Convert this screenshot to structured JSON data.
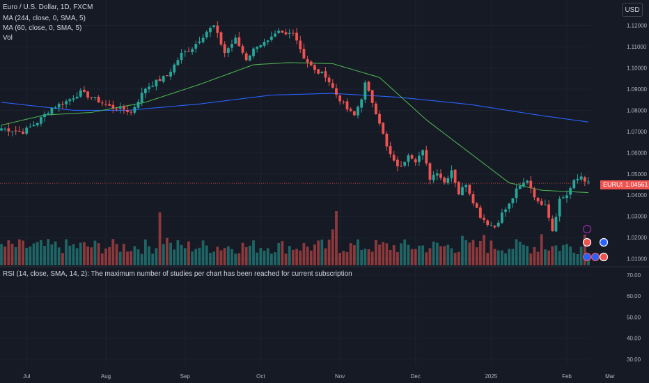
{
  "legend": {
    "symbol_line": "Euro / U.S. Dollar, 1D, FXCM",
    "ma244_line": "MA (244, close, 0, SMA, 5)",
    "ma60_line": "MA (60, close, 0, SMA, 5)",
    "vol_line": "Vol"
  },
  "currency_button": "USD",
  "rsi_pane": {
    "message": "RSI (14, close, SMA, 14, 2): The maximum number of studies per chart has been reached for current subscription"
  },
  "last_price": {
    "symbol": "EURUSD",
    "value": "1.04561"
  },
  "colors": {
    "background": "#161a25",
    "up": "#26a69a",
    "down": "#ef5350",
    "ma244": "#2962ff",
    "ma60": "#4caf50",
    "text": "#b2b5be"
  },
  "chart_data": [
    {
      "type": "candlestick",
      "title": "Euro / U.S. Dollar, 1D, FXCM",
      "ylim": [
        1.006,
        1.126
      ],
      "y_ticks": [
        "1.12000",
        "1.11000",
        "1.10000",
        "1.09000",
        "1.08000",
        "1.07000",
        "1.06000",
        "1.05000",
        "1.04000",
        "1.03000",
        "1.02000",
        "1.01000"
      ],
      "x_ticks": [
        "Jul",
        "Aug",
        "Sep",
        "Oct",
        "Nov",
        "Dec",
        "2025",
        "Feb",
        "Mar"
      ],
      "close_path": [
        [
          0,
          1.0715
        ],
        [
          6,
          1.0698
        ],
        [
          10,
          1.0745
        ],
        [
          14,
          1.0812
        ],
        [
          18,
          1.0842
        ],
        [
          22,
          1.0885
        ],
        [
          26,
          1.0852
        ],
        [
          30,
          1.0818
        ],
        [
          34,
          1.0805
        ],
        [
          36,
          1.0791
        ],
        [
          40,
          1.0905
        ],
        [
          43,
          1.0935
        ],
        [
          46,
          1.0962
        ],
        [
          50,
          1.1065
        ],
        [
          53,
          1.1095
        ],
        [
          57,
          1.1172
        ],
        [
          59,
          1.1198
        ],
        [
          62,
          1.1072
        ],
        [
          65,
          1.1135
        ],
        [
          68,
          1.1042
        ],
        [
          71,
          1.1108
        ],
        [
          74,
          1.1122
        ],
        [
          77,
          1.1168
        ],
        [
          79,
          1.1155
        ],
        [
          81,
          1.1175
        ],
        [
          84,
          1.105
        ],
        [
          87,
          1.0985
        ],
        [
          90,
          1.0965
        ],
        [
          93,
          1.0875
        ],
        [
          96,
          1.0805
        ],
        [
          98,
          1.0775
        ],
        [
          100,
          1.086
        ],
        [
          101,
          1.0925
        ],
        [
          103,
          1.084
        ],
        [
          105,
          1.0745
        ],
        [
          107,
          1.0625
        ],
        [
          109,
          1.0555
        ],
        [
          111,
          1.053
        ],
        [
          113,
          1.0598
        ],
        [
          115,
          1.0565
        ],
        [
          117,
          1.0605
        ],
        [
          119,
          1.048
        ],
        [
          121,
          1.0512
        ],
        [
          123,
          1.046
        ],
        [
          125,
          1.052
        ],
        [
          127,
          1.0408
        ],
        [
          129,
          1.0455
        ],
        [
          131,
          1.0372
        ],
        [
          133,
          1.0302
        ],
        [
          135,
          1.0268
        ],
        [
          137,
          1.025
        ],
        [
          139,
          1.0312
        ],
        [
          141,
          1.0355
        ],
        [
          143,
          1.0422
        ],
        [
          146,
          1.0473
        ],
        [
          149,
          1.0362
        ],
        [
          151,
          1.0365
        ],
        [
          153,
          1.0235
        ],
        [
          155,
          1.038
        ],
        [
          157,
          1.0402
        ],
        [
          159,
          1.0462
        ],
        [
          161,
          1.049
        ],
        [
          163,
          1.0456
        ]
      ],
      "series": [
        {
          "name": "MA (244, close, 0, SMA, 5)",
          "points": [
            [
              0,
              1.0838
            ],
            [
              20,
              1.08
            ],
            [
              35,
              1.08
            ],
            [
              55,
              1.083
            ],
            [
              75,
              1.0872
            ],
            [
              92,
              1.088
            ],
            [
              110,
              1.0862
            ],
            [
              130,
              1.0828
            ],
            [
              150,
              1.0775
            ],
            [
              163,
              1.0745
            ]
          ]
        },
        {
          "name": "MA (60, close, 0, SMA, 5)",
          "points": [
            [
              0,
              1.073
            ],
            [
              12,
              1.0778
            ],
            [
              25,
              1.079
            ],
            [
              40,
              1.0838
            ],
            [
              55,
              1.0922
            ],
            [
              70,
              1.1015
            ],
            [
              80,
              1.1025
            ],
            [
              92,
              1.102
            ],
            [
              105,
              1.0955
            ],
            [
              118,
              1.0755
            ],
            [
              130,
              1.06
            ],
            [
              141,
              1.0458
            ],
            [
              150,
              1.0423
            ],
            [
              163,
              1.0412
            ]
          ]
        }
      ],
      "volume_bars": 164
    },
    {
      "type": "line",
      "title": "RSI (14, close, SMA, 14, 2)",
      "y_ticks": [
        "70.00",
        "60.00",
        "50.00",
        "40.00",
        "30.00"
      ]
    }
  ]
}
